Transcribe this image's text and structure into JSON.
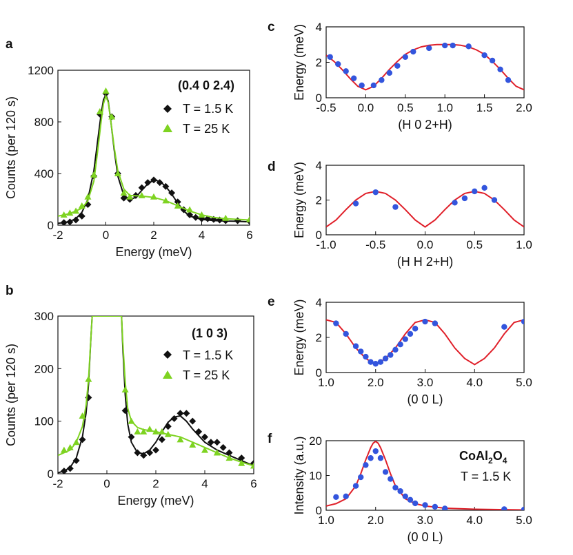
{
  "chart_data": [
    {
      "id": "a",
      "panel_label": "a",
      "type": "scatter",
      "xlabel": "Energy (meV)",
      "ylabel": "Counts (per 120 s)",
      "xlim": [
        -2,
        6
      ],
      "ylim": [
        0,
        1200
      ],
      "xticks": [
        -2,
        0,
        2,
        4,
        6
      ],
      "xtick_labels": [
        "-2",
        "0",
        "2",
        "4",
        "6"
      ],
      "yticks": [
        0,
        400,
        800,
        1200
      ],
      "ytick_labels": [
        "0",
        "400",
        "800",
        "1200"
      ],
      "annotation": "(0.4 0 2.4)",
      "series": [
        {
          "name": "T = 1.5 K",
          "color": "#111111",
          "marker": "diamond",
          "x": [
            -1.75,
            -1.5,
            -1.25,
            -1.0,
            -0.75,
            -0.5,
            -0.25,
            0.0,
            0.25,
            0.5,
            0.75,
            1.0,
            1.25,
            1.5,
            1.75,
            2.0,
            2.25,
            2.5,
            2.75,
            3.0,
            3.25,
            3.5,
            3.75,
            4.0,
            4.25,
            4.5,
            4.75,
            5.0,
            5.5,
            6.0
          ],
          "y": [
            20,
            25,
            40,
            70,
            160,
            380,
            860,
            1020,
            840,
            400,
            210,
            200,
            230,
            290,
            330,
            350,
            330,
            300,
            250,
            180,
            120,
            80,
            60,
            50,
            50,
            45,
            40,
            35,
            35,
            30
          ],
          "fit_x": [
            -2,
            -1.75,
            -1.5,
            -1.25,
            -1.0,
            -0.75,
            -0.5,
            -0.35,
            -0.2,
            -0.1,
            0.0,
            0.1,
            0.2,
            0.35,
            0.5,
            0.75,
            1.0,
            1.25,
            1.5,
            1.75,
            2.0,
            2.25,
            2.5,
            2.75,
            3.0,
            3.25,
            3.5,
            4.0,
            4.5,
            5.0,
            5.5,
            6.0
          ],
          "fit_y": [
            15,
            20,
            30,
            50,
            100,
            200,
            420,
            640,
            860,
            970,
            1010,
            960,
            820,
            580,
            380,
            230,
            200,
            215,
            270,
            320,
            350,
            340,
            300,
            240,
            170,
            110,
            70,
            45,
            35,
            32,
            30,
            25
          ]
        },
        {
          "name": "T =  25 K",
          "color": "#7ed321",
          "marker": "triangle",
          "x": [
            -1.75,
            -1.5,
            -1.25,
            -1.0,
            -0.75,
            -0.5,
            -0.25,
            0.0,
            0.25,
            0.5,
            0.75,
            1.0,
            1.5,
            2.0,
            2.5,
            3.0,
            3.5,
            4.0,
            5.0,
            6.0
          ],
          "y": [
            80,
            95,
            110,
            150,
            220,
            390,
            880,
            1040,
            840,
            400,
            250,
            220,
            230,
            220,
            190,
            150,
            120,
            80,
            55,
            45
          ],
          "fit_x": [
            -2,
            -1.5,
            -1.0,
            -0.75,
            -0.5,
            -0.35,
            -0.2,
            -0.1,
            0.0,
            0.1,
            0.2,
            0.35,
            0.5,
            0.75,
            1.0,
            1.5,
            2.0,
            2.5,
            3.0,
            3.5,
            4.0,
            4.5,
            5.0,
            6.0
          ],
          "fit_y": [
            70,
            90,
            130,
            190,
            340,
            560,
            800,
            940,
            1000,
            950,
            820,
            600,
            420,
            280,
            230,
            225,
            215,
            190,
            150,
            110,
            80,
            60,
            50,
            40
          ]
        }
      ]
    },
    {
      "id": "b",
      "panel_label": "b",
      "type": "scatter",
      "xlabel": "Energy (meV)",
      "ylabel": "Counts (per 120 s)",
      "xlim": [
        -2,
        6
      ],
      "ylim": [
        0,
        300
      ],
      "xticks": [
        -2,
        0,
        2,
        4,
        6
      ],
      "xtick_labels": [
        "-2",
        "0",
        "2",
        "4",
        "6"
      ],
      "yticks": [
        0,
        100,
        200,
        300
      ],
      "ytick_labels": [
        "0",
        "100",
        "200",
        "300"
      ],
      "annotation": "(1 0 3)",
      "series": [
        {
          "name": "T = 1.5 K",
          "color": "#111111",
          "marker": "diamond",
          "x": [
            -1.75,
            -1.5,
            -1.25,
            -1.0,
            -0.75,
            0.75,
            1.0,
            1.25,
            1.5,
            1.75,
            2.0,
            2.25,
            2.5,
            2.75,
            3.0,
            3.25,
            3.5,
            3.75,
            4.0,
            4.25,
            4.5,
            4.75,
            5.0,
            5.5,
            6.0
          ],
          "y": [
            5,
            10,
            25,
            65,
            145,
            120,
            70,
            40,
            35,
            40,
            45,
            65,
            90,
            105,
            115,
            115,
            100,
            80,
            70,
            60,
            60,
            50,
            40,
            30,
            20
          ],
          "fit_x": [
            -2,
            -1.75,
            -1.5,
            -1.25,
            -1.0,
            -0.85,
            -0.75,
            -0.65,
            -0.6,
            0.6,
            0.65,
            0.75,
            0.85,
            1.0,
            1.25,
            1.5,
            1.75,
            2.0,
            2.25,
            2.5,
            2.75,
            3.0,
            3.25,
            3.5,
            4.0,
            4.5,
            5.0,
            5.5,
            6.0
          ],
          "fit_y": [
            2,
            5,
            12,
            30,
            70,
            115,
            170,
            260,
            300,
            300,
            240,
            150,
            95,
            60,
            40,
            38,
            45,
            60,
            80,
            98,
            108,
            110,
            100,
            85,
            60,
            45,
            35,
            25,
            15
          ]
        },
        {
          "name": "T =  25 K",
          "color": "#7ed321",
          "marker": "triangle",
          "x": [
            -1.75,
            -1.5,
            -1.25,
            -1.0,
            -0.75,
            0.75,
            1.0,
            1.25,
            1.5,
            1.75,
            2.0,
            2.25,
            2.5,
            3.0,
            3.5,
            4.0,
            4.5,
            5.0,
            5.5,
            6.0
          ],
          "y": [
            45,
            50,
            60,
            110,
            180,
            160,
            100,
            80,
            80,
            85,
            80,
            80,
            75,
            65,
            55,
            45,
            40,
            30,
            20,
            15
          ],
          "fit_x": [
            -2,
            -1.5,
            -1.25,
            -1.0,
            -0.85,
            -0.75,
            -0.65,
            -0.6,
            0.6,
            0.65,
            0.75,
            0.85,
            1.0,
            1.25,
            1.5,
            2.0,
            2.5,
            3.0,
            3.5,
            4.0,
            4.5,
            5.0,
            5.5,
            6.0
          ],
          "fit_y": [
            35,
            45,
            60,
            90,
            130,
            180,
            260,
            300,
            300,
            250,
            175,
            125,
            100,
            88,
            84,
            80,
            75,
            70,
            60,
            50,
            40,
            30,
            22,
            15
          ]
        }
      ]
    },
    {
      "id": "c",
      "panel_label": "c",
      "type": "scatter",
      "xlabel": "(H 0 2+H)",
      "ylabel": "Energy (meV)",
      "xlim": [
        -0.5,
        2.0
      ],
      "ylim": [
        0,
        4
      ],
      "xticks": [
        -0.5,
        0.0,
        0.5,
        1.0,
        1.5,
        2.0
      ],
      "xtick_labels": [
        "-0.5",
        "0.0",
        "0.5",
        "1.0",
        "1.5",
        "2.0"
      ],
      "yticks": [
        0,
        2,
        4
      ],
      "ytick_labels": [
        "0",
        "2",
        "4"
      ],
      "series": [
        {
          "name": "data",
          "color": "#3355dd",
          "marker": "circle",
          "x": [
            -0.45,
            -0.35,
            -0.25,
            -0.15,
            -0.05,
            0.1,
            0.2,
            0.3,
            0.4,
            0.5,
            0.6,
            0.8,
            1.0,
            1.1,
            1.3,
            1.5,
            1.6,
            1.7,
            1.8
          ],
          "y": [
            2.3,
            1.9,
            1.5,
            1.1,
            0.7,
            0.7,
            1.0,
            1.4,
            1.8,
            2.3,
            2.6,
            2.8,
            2.95,
            2.95,
            2.9,
            2.4,
            2.1,
            1.6,
            1.0
          ],
          "fit_x": [
            -0.5,
            -0.4,
            -0.3,
            -0.2,
            -0.1,
            0.0,
            0.1,
            0.2,
            0.3,
            0.4,
            0.5,
            0.6,
            0.7,
            0.8,
            0.9,
            1.0,
            1.1,
            1.2,
            1.3,
            1.4,
            1.5,
            1.6,
            1.7,
            1.8,
            1.9,
            2.0
          ],
          "fit_y": [
            2.4,
            2.05,
            1.6,
            1.1,
            0.65,
            0.45,
            0.65,
            1.1,
            1.6,
            2.05,
            2.45,
            2.7,
            2.87,
            2.96,
            3.0,
            3.0,
            3.0,
            2.96,
            2.87,
            2.7,
            2.45,
            2.05,
            1.6,
            1.1,
            0.65,
            0.45
          ]
        }
      ]
    },
    {
      "id": "d",
      "panel_label": "d",
      "type": "scatter",
      "xlabel": "(H H 2+H)",
      "ylabel": "Energy (meV)",
      "xlim": [
        -1.0,
        1.0
      ],
      "ylim": [
        0,
        4
      ],
      "xticks": [
        -1.0,
        -0.5,
        0.0,
        0.5,
        1.0
      ],
      "xtick_labels": [
        "-1.0",
        "-0.5",
        "0.0",
        "0.5",
        "1.0"
      ],
      "yticks": [
        0,
        2,
        4
      ],
      "ytick_labels": [
        "0",
        "2",
        "4"
      ],
      "series": [
        {
          "name": "data",
          "color": "#3355dd",
          "marker": "circle",
          "x": [
            -0.7,
            -0.5,
            -0.3,
            0.3,
            0.4,
            0.5,
            0.6,
            0.7
          ],
          "y": [
            1.8,
            2.45,
            1.6,
            1.85,
            2.1,
            2.5,
            2.7,
            2.0
          ],
          "fit_x": [
            -1.0,
            -0.9,
            -0.8,
            -0.7,
            -0.6,
            -0.5,
            -0.4,
            -0.3,
            -0.2,
            -0.1,
            0.0,
            0.1,
            0.2,
            0.3,
            0.4,
            0.5,
            0.6,
            0.7,
            0.8,
            0.9,
            1.0
          ],
          "fit_y": [
            0.45,
            0.85,
            1.45,
            2.0,
            2.38,
            2.5,
            2.38,
            2.0,
            1.45,
            0.85,
            0.45,
            0.85,
            1.45,
            2.0,
            2.38,
            2.5,
            2.38,
            2.0,
            1.45,
            0.85,
            0.45
          ]
        }
      ]
    },
    {
      "id": "e",
      "panel_label": "e",
      "type": "scatter",
      "xlabel": "(0 0 L)",
      "ylabel": "Energy (meV)",
      "xlim": [
        1.0,
        5.0
      ],
      "ylim": [
        0,
        4
      ],
      "xticks": [
        1.0,
        2.0,
        3.0,
        4.0,
        5.0
      ],
      "xtick_labels": [
        "1.0",
        "2.0",
        "3.0",
        "4.0",
        "5.0"
      ],
      "yticks": [
        0,
        2,
        4
      ],
      "ytick_labels": [
        "0",
        "2",
        "4"
      ],
      "series": [
        {
          "name": "data",
          "color": "#3355dd",
          "marker": "circle",
          "x": [
            1.2,
            1.4,
            1.6,
            1.7,
            1.8,
            1.9,
            2.0,
            2.1,
            2.2,
            2.3,
            2.4,
            2.5,
            2.6,
            2.7,
            2.8,
            3.0,
            3.2,
            4.6,
            5.0
          ],
          "y": [
            2.8,
            2.2,
            1.5,
            1.2,
            0.9,
            0.6,
            0.5,
            0.6,
            0.8,
            1.0,
            1.3,
            1.6,
            1.9,
            2.2,
            2.5,
            2.9,
            2.8,
            2.6,
            2.9
          ],
          "fit_x": [
            1.0,
            1.2,
            1.4,
            1.6,
            1.8,
            2.0,
            2.2,
            2.4,
            2.6,
            2.8,
            3.0,
            3.2,
            3.4,
            3.6,
            3.8,
            4.0,
            4.2,
            4.4,
            4.6,
            4.8,
            5.0
          ],
          "fit_y": [
            3.0,
            2.85,
            2.2,
            1.4,
            0.8,
            0.45,
            0.8,
            1.4,
            2.2,
            2.85,
            3.0,
            2.85,
            2.2,
            1.4,
            0.8,
            0.45,
            0.8,
            1.4,
            2.2,
            2.85,
            3.0
          ]
        }
      ]
    },
    {
      "id": "f",
      "panel_label": "f",
      "type": "scatter",
      "xlabel": "(0 0 L)",
      "ylabel": "Intensity (a.u.)",
      "xlim": [
        1.0,
        5.0
      ],
      "ylim": [
        0,
        20
      ],
      "xticks": [
        1.0,
        2.0,
        3.0,
        4.0,
        5.0
      ],
      "xtick_labels": [
        "1.0",
        "2.0",
        "3.0",
        "4.0",
        "5.0"
      ],
      "yticks": [
        0,
        10,
        20
      ],
      "ytick_labels": [
        "0",
        "10",
        "20"
      ],
      "compound": "CoAl",
      "compound_sub1": "2",
      "compound_mid": "O",
      "compound_sub2": "4",
      "temperature": "T = 1.5 K",
      "series": [
        {
          "name": "data",
          "color": "#3355dd",
          "marker": "circle",
          "x": [
            1.2,
            1.4,
            1.6,
            1.7,
            1.8,
            1.9,
            2.0,
            2.1,
            2.2,
            2.3,
            2.4,
            2.5,
            2.6,
            2.7,
            2.8,
            3.0,
            3.2,
            3.4,
            4.6,
            5.0
          ],
          "y": [
            3.8,
            4.0,
            7.0,
            9.5,
            13.0,
            15.0,
            17.0,
            15.0,
            11.0,
            9.0,
            6.5,
            5.5,
            4.0,
            3.0,
            2.0,
            1.5,
            1.0,
            0.5,
            0.3,
            0.2
          ],
          "fit_x": [
            1.0,
            1.2,
            1.4,
            1.6,
            1.7,
            1.8,
            1.9,
            1.95,
            2.0,
            2.05,
            2.1,
            2.2,
            2.3,
            2.4,
            2.6,
            2.8,
            3.0,
            3.4,
            4.0,
            4.5,
            5.0
          ],
          "fit_y": [
            1.2,
            1.9,
            3.3,
            7.0,
            10.5,
            14.5,
            18.0,
            19.3,
            19.8,
            19.3,
            18.0,
            14.5,
            10.5,
            7.0,
            3.3,
            1.9,
            1.2,
            0.6,
            0.3,
            0.2,
            0.1
          ]
        }
      ]
    }
  ],
  "legend_a": [
    "T = 1.5 K",
    "T =  25 K"
  ],
  "legend_b": [
    "T = 1.5 K",
    "T =  25 K"
  ]
}
